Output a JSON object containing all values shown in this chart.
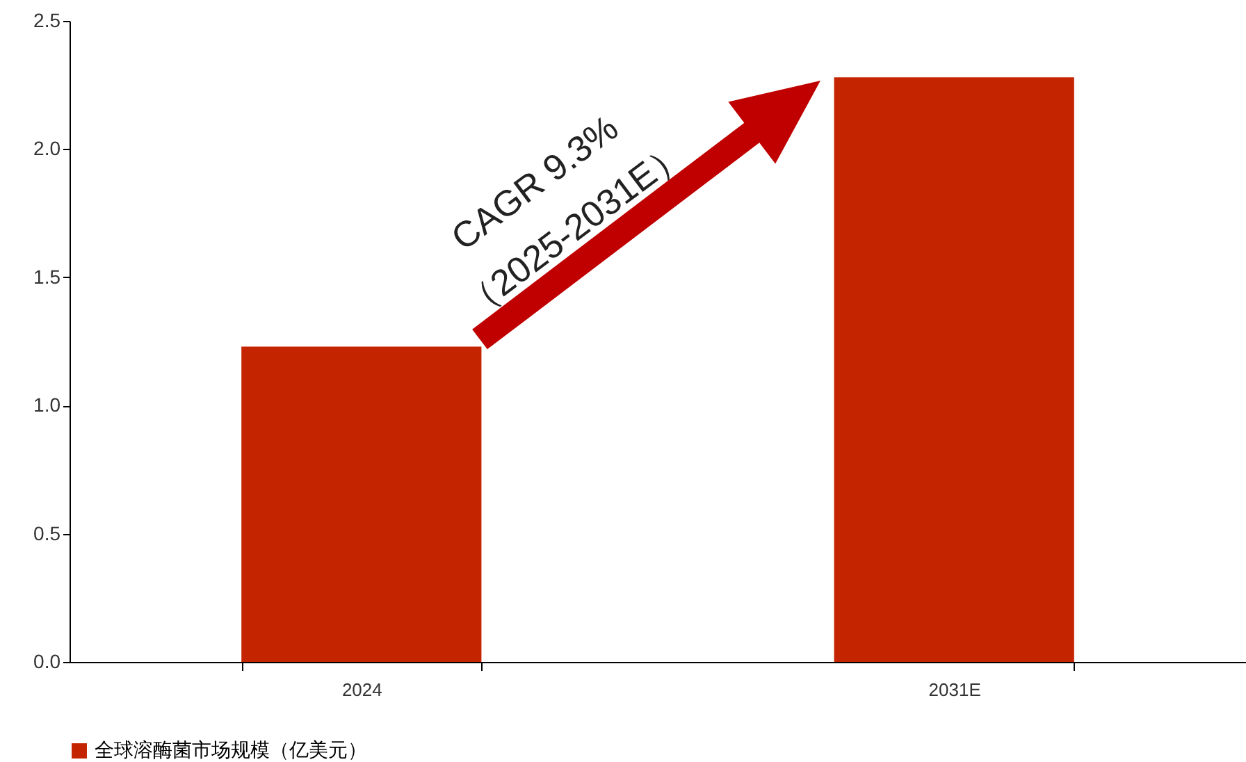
{
  "chart_data": {
    "type": "bar",
    "categories": [
      "2024",
      "2031E"
    ],
    "series": [
      {
        "name": "全球溶酶菌市场规模（亿美元）",
        "color": "#c52400",
        "values": [
          1.23,
          2.28
        ]
      }
    ],
    "ylim": [
      0,
      2.5
    ],
    "yticks": [
      {
        "value": 0,
        "label": "0.0"
      },
      {
        "value": 0.5,
        "label": "0.5"
      },
      {
        "value": 1,
        "label": "1.0"
      },
      {
        "value": 1.5,
        "label": "1.5"
      },
      {
        "value": 2,
        "label": "2.0"
      },
      {
        "value": 2.5,
        "label": "2.5"
      }
    ],
    "annotations": [
      "CAGR 9.3%",
      "（2025-2031E）"
    ],
    "grid": false,
    "legend": "bottom"
  }
}
